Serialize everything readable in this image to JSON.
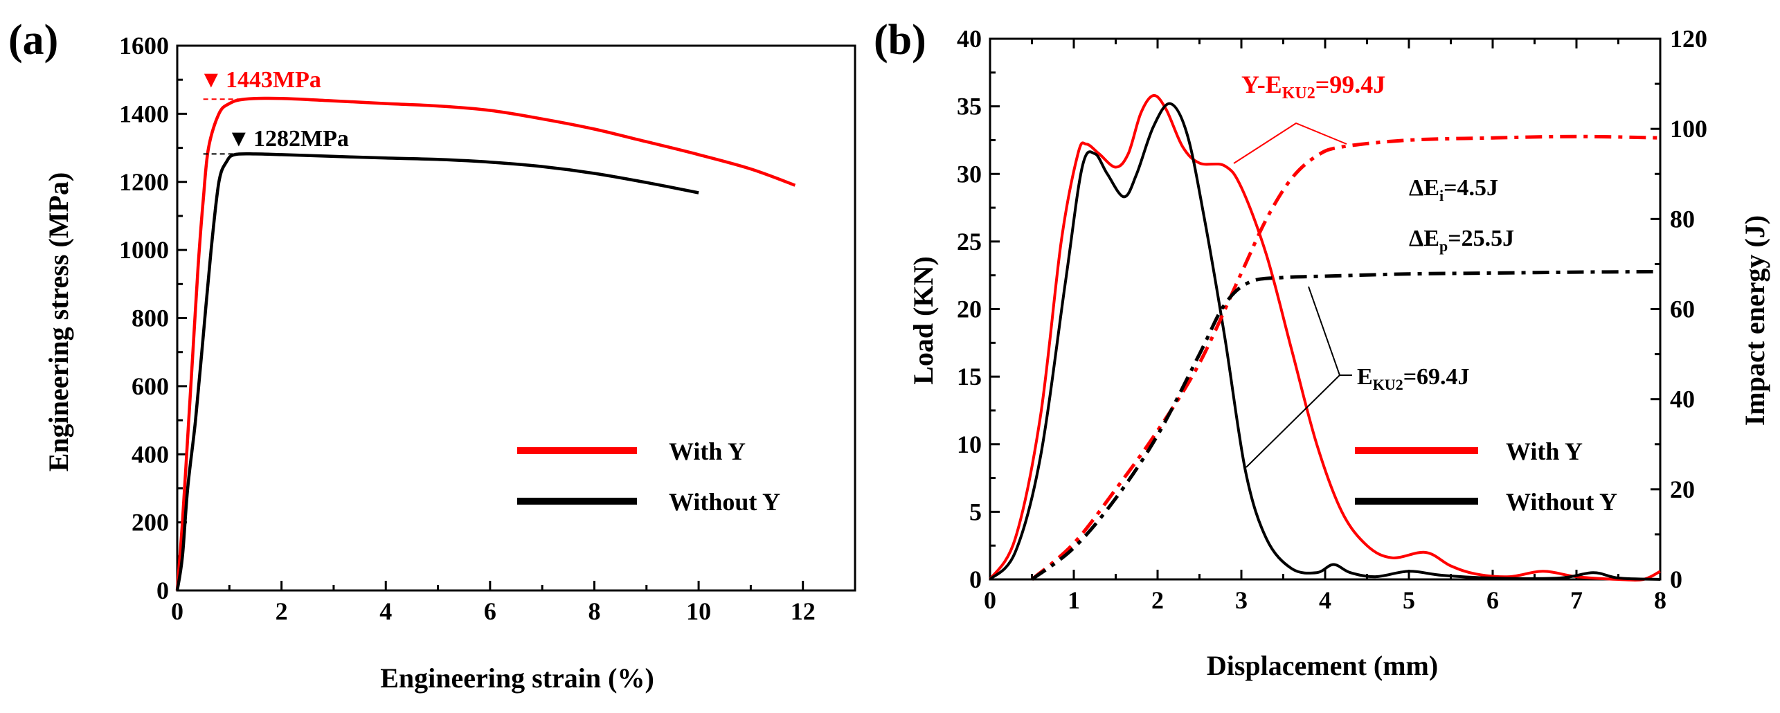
{
  "chart_data": [
    {
      "type": "line",
      "panel_label": "(a)",
      "xlabel": "Engineering strain (%)",
      "ylabel": "Engineering stress (MPa)",
      "xlim": [
        0,
        13
      ],
      "ylim": [
        0,
        1600
      ],
      "x_ticks": [
        0,
        2,
        4,
        6,
        8,
        10,
        12
      ],
      "y_ticks": [
        0,
        200,
        400,
        600,
        800,
        1000,
        1200,
        1400,
        1600
      ],
      "grid": false,
      "legend_position": "bottom-right",
      "series": [
        {
          "name": "With Y",
          "color": "#ff0000",
          "points": [
            [
              0,
              0
            ],
            [
              0.1,
              200
            ],
            [
              0.2,
              450
            ],
            [
              0.3,
              700
            ],
            [
              0.4,
              950
            ],
            [
              0.5,
              1150
            ],
            [
              0.6,
              1300
            ],
            [
              0.8,
              1400
            ],
            [
              1.0,
              1430
            ],
            [
              1.3,
              1443
            ],
            [
              2,
              1445
            ],
            [
              3,
              1438
            ],
            [
              4,
              1430
            ],
            [
              5,
              1423
            ],
            [
              6,
              1410
            ],
            [
              7,
              1385
            ],
            [
              8,
              1355
            ],
            [
              9,
              1318
            ],
            [
              10,
              1280
            ],
            [
              11,
              1238
            ],
            [
              11.85,
              1190
            ]
          ]
        },
        {
          "name": "Without Y",
          "color": "#000000",
          "points": [
            [
              0,
              0
            ],
            [
              0.1,
              100
            ],
            [
              0.2,
              300
            ],
            [
              0.35,
              500
            ],
            [
              0.5,
              750
            ],
            [
              0.65,
              1000
            ],
            [
              0.8,
              1200
            ],
            [
              0.95,
              1260
            ],
            [
              1.1,
              1280
            ],
            [
              1.5,
              1282
            ],
            [
              2,
              1280
            ],
            [
              3,
              1275
            ],
            [
              4,
              1270
            ],
            [
              5,
              1266
            ],
            [
              6,
              1258
            ],
            [
              7,
              1245
            ],
            [
              8,
              1225
            ],
            [
              9,
              1198
            ],
            [
              10,
              1168
            ]
          ]
        }
      ],
      "annotations": [
        {
          "text": "1443MPa",
          "marker": "▼",
          "x": 0.6,
          "y": 1443,
          "color": "#ff0000"
        },
        {
          "text": "1282MPa",
          "marker": "▼",
          "x": 1.1,
          "y": 1282,
          "color": "#000000"
        }
      ]
    },
    {
      "type": "line",
      "panel_label": "(b)",
      "xlabel": "Displacement (mm)",
      "ylabel": "Load (KN)",
      "y2label": "Impact energy (J)",
      "xlim": [
        0,
        8
      ],
      "ylim": [
        0,
        40
      ],
      "y2lim": [
        0,
        120
      ],
      "x_ticks": [
        0,
        1,
        2,
        3,
        4,
        5,
        6,
        7,
        8
      ],
      "y_ticks": [
        0,
        5,
        10,
        15,
        20,
        25,
        30,
        35,
        40
      ],
      "y2_ticks": [
        0,
        20,
        40,
        60,
        80,
        100,
        120
      ],
      "grid": false,
      "legend_position": "bottom-right",
      "series": [
        {
          "name": "With Y",
          "color": "#ff0000",
          "points": [
            [
              0,
              0
            ],
            [
              0.3,
              3
            ],
            [
              0.6,
              12
            ],
            [
              0.85,
              25
            ],
            [
              1.05,
              31.5
            ],
            [
              1.15,
              32.2
            ],
            [
              1.3,
              31.5
            ],
            [
              1.5,
              30.5
            ],
            [
              1.65,
              31.5
            ],
            [
              1.8,
              34.5
            ],
            [
              1.95,
              35.8
            ],
            [
              2.1,
              34.8
            ],
            [
              2.3,
              32
            ],
            [
              2.5,
              30.8
            ],
            [
              2.8,
              30.6
            ],
            [
              3.0,
              29
            ],
            [
              3.3,
              24
            ],
            [
              3.6,
              17
            ],
            [
              3.9,
              10
            ],
            [
              4.2,
              5
            ],
            [
              4.5,
              2.5
            ],
            [
              4.8,
              1.6
            ],
            [
              5.2,
              2
            ],
            [
              5.5,
              1
            ],
            [
              5.8,
              0.4
            ],
            [
              6.2,
              0.2
            ],
            [
              6.6,
              0.6
            ],
            [
              7,
              0.2
            ],
            [
              7.5,
              0
            ],
            [
              7.8,
              0
            ],
            [
              8,
              0.6
            ]
          ]
        },
        {
          "name": "Without Y",
          "color": "#000000",
          "points": [
            [
              0,
              0
            ],
            [
              0.3,
              2
            ],
            [
              0.6,
              9
            ],
            [
              0.9,
              22
            ],
            [
              1.1,
              30.5
            ],
            [
              1.25,
              31.5
            ],
            [
              1.4,
              30
            ],
            [
              1.6,
              28.3
            ],
            [
              1.75,
              30
            ],
            [
              1.95,
              33.5
            ],
            [
              2.15,
              35.2
            ],
            [
              2.35,
              33
            ],
            [
              2.55,
              27
            ],
            [
              2.8,
              18
            ],
            [
              3.05,
              8
            ],
            [
              3.3,
              3
            ],
            [
              3.6,
              0.8
            ],
            [
              3.9,
              0.5
            ],
            [
              4.1,
              1.1
            ],
            [
              4.3,
              0.5
            ],
            [
              4.6,
              0.2
            ],
            [
              5.0,
              0.6
            ],
            [
              5.4,
              0.3
            ],
            [
              6,
              0.1
            ],
            [
              6.8,
              0.1
            ],
            [
              7.2,
              0.5
            ],
            [
              7.5,
              0.1
            ],
            [
              8,
              0
            ]
          ]
        },
        {
          "name": "With Y energy",
          "color": "#ff0000",
          "dashed": true,
          "axis": "right",
          "points": [
            [
              0.5,
              0
            ],
            [
              1,
              8
            ],
            [
              1.5,
              20
            ],
            [
              2,
              33
            ],
            [
              2.5,
              48
            ],
            [
              3,
              68
            ],
            [
              3.3,
              80
            ],
            [
              3.6,
              89
            ],
            [
              3.9,
              94
            ],
            [
              4.2,
              96
            ],
            [
              5,
              97.5
            ],
            [
              6,
              98
            ],
            [
              7,
              98.3
            ],
            [
              8,
              98
            ]
          ]
        },
        {
          "name": "Without Y energy",
          "color": "#000000",
          "dashed": true,
          "axis": "right",
          "points": [
            [
              0.5,
              0
            ],
            [
              1,
              7
            ],
            [
              1.5,
              18
            ],
            [
              2,
              32
            ],
            [
              2.5,
              50
            ],
            [
              2.8,
              61
            ],
            [
              3.1,
              66
            ],
            [
              3.5,
              67
            ],
            [
              4,
              67.3
            ],
            [
              5,
              67.8
            ],
            [
              6,
              68
            ],
            [
              7,
              68.2
            ],
            [
              8,
              68.3
            ]
          ]
        }
      ],
      "annotations": [
        {
          "text": "Y-E",
          "subscript": "KU2",
          "suffix": "=99.4J",
          "color": "#ff0000"
        },
        {
          "text": "ΔE",
          "subscript": "i",
          "suffix": "=4.5J",
          "color": "#000000"
        },
        {
          "text": "ΔE",
          "subscript": "p",
          "suffix": "=25.5J",
          "color": "#000000"
        },
        {
          "text": "E",
          "subscript": "KU2",
          "suffix": "=69.4J",
          "color": "#000000"
        }
      ]
    }
  ]
}
